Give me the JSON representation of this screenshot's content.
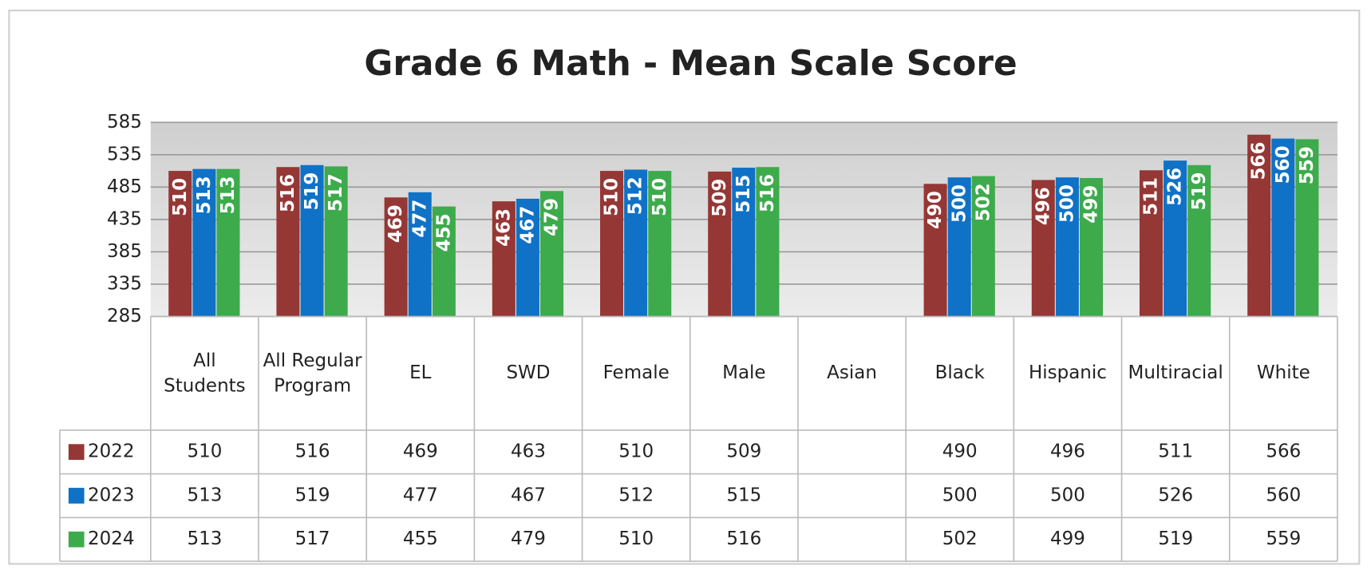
{
  "chart_data": {
    "type": "bar",
    "title": "Grade 6 Math - Mean Scale Score",
    "categories": [
      "All Students",
      "All Regular Program",
      "EL",
      "SWD",
      "Female",
      "Male",
      "Asian",
      "Black",
      "Hispanic",
      "Multiracial",
      "White"
    ],
    "series": [
      {
        "name": "2022",
        "color": "#953735",
        "values": [
          510,
          516,
          469,
          463,
          510,
          509,
          null,
          490,
          496,
          511,
          566
        ]
      },
      {
        "name": "2023",
        "color": "#0f72c6",
        "values": [
          513,
          519,
          477,
          467,
          512,
          515,
          null,
          500,
          500,
          526,
          560
        ]
      },
      {
        "name": "2024",
        "color": "#3dab4c",
        "values": [
          513,
          517,
          455,
          479,
          510,
          516,
          null,
          502,
          499,
          519,
          559
        ]
      }
    ],
    "ylim": [
      285,
      585
    ],
    "yticks": [
      285,
      335,
      385,
      435,
      485,
      535,
      585
    ],
    "grid": true,
    "data_table": true
  }
}
